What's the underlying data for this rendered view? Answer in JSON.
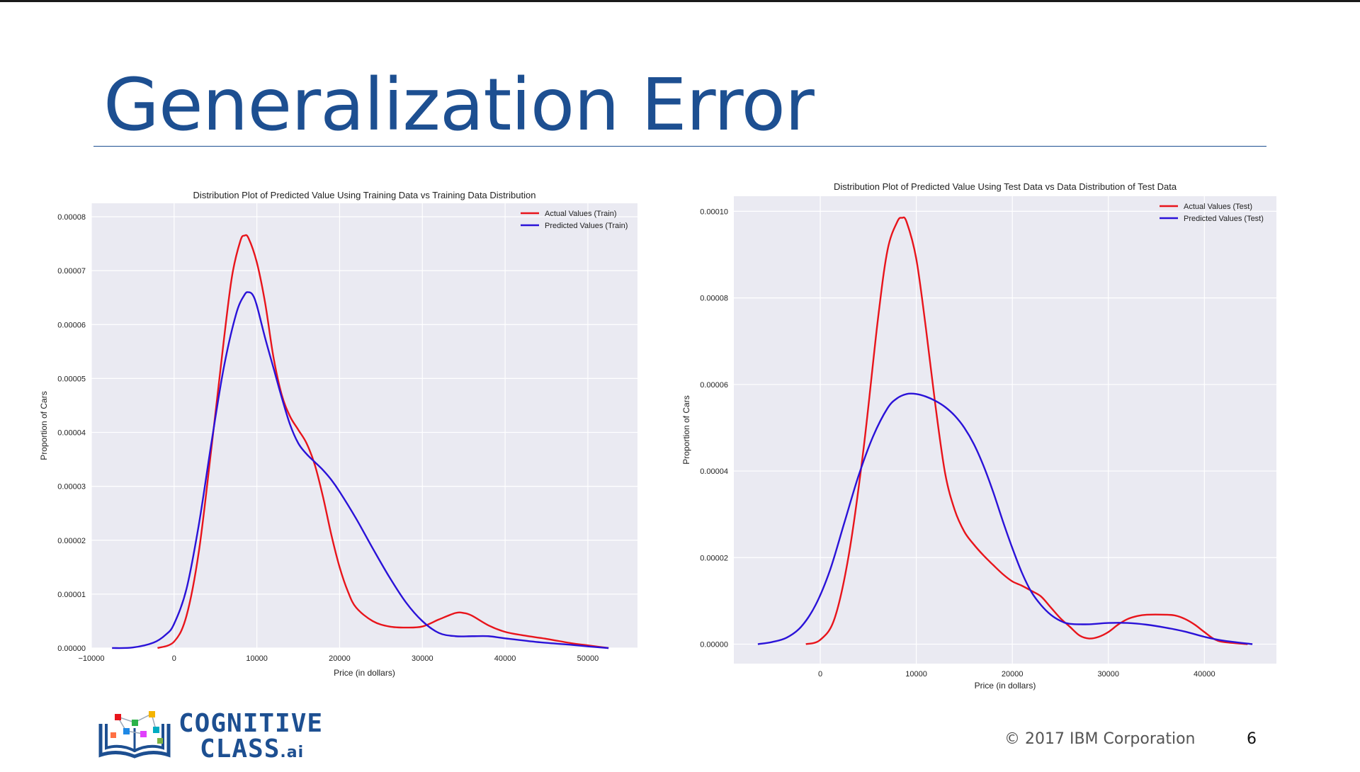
{
  "slide": {
    "title": "Generalization Error",
    "copyright": "© 2017 IBM Corporation",
    "page_number": "6",
    "logo": {
      "line1": "COGNITIVE",
      "line2": "CLASS",
      "suffix": ".ai"
    }
  },
  "colors": {
    "title": "#1d4f91",
    "actual": "#e8141b",
    "predicted": "#2a12d8",
    "plot_bg": "#eaeaf2",
    "grid": "#ffffff"
  },
  "chart_data": [
    {
      "type": "line",
      "title": "Distribution  Plot of  Predicted Value Using Training Data vs Training Data Distribution",
      "xlabel": "Price (in dollars)",
      "ylabel": "Proportion of Cars",
      "xlim": [
        -10000,
        56000
      ],
      "ylim": [
        0,
        8.25e-05
      ],
      "xticks": [
        -10000,
        0,
        10000,
        20000,
        30000,
        40000,
        50000
      ],
      "xtick_labels": [
        "−10000",
        "0",
        "10000",
        "20000",
        "30000",
        "40000",
        "50000"
      ],
      "yticks": [
        0,
        1e-05,
        2e-05,
        3e-05,
        4e-05,
        5e-05,
        6e-05,
        7e-05,
        8e-05
      ],
      "ytick_labels": [
        "0.00000",
        "0.00001",
        "0.00002",
        "0.00003",
        "0.00004",
        "0.00005",
        "0.00006",
        "0.00007",
        "0.00008"
      ],
      "grid": true,
      "legend": "top-right",
      "series": [
        {
          "name": "Actual Values (Train)",
          "color": "#e8141b",
          "x": [
            -2000,
            0,
            1500,
            3000,
            4500,
            6000,
            7000,
            8000,
            8500,
            9000,
            10000,
            11000,
            12000,
            13000,
            14000,
            15000,
            16000,
            17000,
            18000,
            19000,
            20000,
            21000,
            22000,
            24000,
            26000,
            28000,
            30000,
            32000,
            34000,
            35000,
            36000,
            38000,
            40000,
            42000,
            45000,
            48000,
            50000,
            52500
          ],
          "y": [
            0,
            1.2e-06,
            6e-06,
            1.8e-05,
            3.7e-05,
            5.7e-05,
            6.9e-05,
            7.55e-05,
            7.65e-05,
            7.6e-05,
            7.15e-05,
            6.4e-05,
            5.4e-05,
            4.7e-05,
            4.3e-05,
            4.05e-05,
            3.8e-05,
            3.4e-05,
            2.8e-05,
            2.1e-05,
            1.5e-05,
            1.05e-05,
            7.5e-06,
            5e-06,
            4e-06,
            3.8e-06,
            4e-06,
            5.3e-06,
            6.5e-06,
            6.5e-06,
            6e-06,
            4.2e-06,
            3e-06,
            2.4e-06,
            1.7e-06,
            9e-07,
            5e-07,
            0
          ]
        },
        {
          "name": "Predicted Values (Train)",
          "color": "#2a12d8",
          "x": [
            -7500,
            -5000,
            -2500,
            -1000,
            0,
            1500,
            3000,
            4500,
            6000,
            7500,
            8500,
            9000,
            9500,
            10000,
            11000,
            12000,
            13000,
            14000,
            15000,
            16000,
            17000,
            18000,
            19000,
            20000,
            22000,
            24000,
            26000,
            28000,
            30000,
            32000,
            34000,
            36000,
            38000,
            40000,
            44000,
            48000,
            50000,
            52500
          ],
          "y": [
            0,
            1e-07,
            1e-06,
            2.5e-06,
            4.5e-06,
            1.1e-05,
            2.3e-05,
            3.8e-05,
            5.2e-05,
            6.2e-05,
            6.55e-05,
            6.6e-05,
            6.55e-05,
            6.35e-05,
            5.75e-05,
            5.2e-05,
            4.65e-05,
            4.15e-05,
            3.8e-05,
            3.6e-05,
            3.45e-05,
            3.3e-05,
            3.12e-05,
            2.9e-05,
            2.4e-05,
            1.85e-05,
            1.32e-05,
            8.5e-06,
            5e-06,
            2.8e-06,
            2.2e-06,
            2.2e-06,
            2.2e-06,
            1.8e-06,
            1.1e-06,
            6e-07,
            3e-07,
            0
          ]
        }
      ]
    },
    {
      "type": "line",
      "title": "Distribution  Plot of  Predicted Value Using Test Data vs Data Distribution of Test Data",
      "xlabel": "Price (in dollars)",
      "ylabel": "Proportion of Cars",
      "xlim": [
        -9000,
        47500
      ],
      "ylim": [
        -4.5e-06,
        0.0001035
      ],
      "xticks": [
        0,
        10000,
        20000,
        30000,
        40000
      ],
      "xtick_labels": [
        "0",
        "10000",
        "20000",
        "30000",
        "40000"
      ],
      "yticks": [
        0,
        2e-05,
        4e-05,
        6e-05,
        8e-05,
        0.0001
      ],
      "ytick_labels": [
        "0.00000",
        "0.00002",
        "0.00004",
        "0.00006",
        "0.00008",
        "0.00010"
      ],
      "grid": true,
      "legend": "top-right",
      "series": [
        {
          "name": "Actual Values (Test)",
          "color": "#e8141b",
          "x": [
            -1500,
            0,
            1500,
            3000,
            4500,
            6000,
            7000,
            8000,
            8500,
            9000,
            10000,
            11000,
            12000,
            13000,
            14000,
            15000,
            16000,
            17000,
            18000,
            19000,
            20000,
            21000,
            22000,
            23000,
            24000,
            25000,
            26000,
            27000,
            28000,
            29000,
            30000,
            31000,
            32000,
            33000,
            34000,
            36000,
            37000,
            38000,
            39000,
            40000,
            41000,
            42000,
            44500
          ],
          "y": [
            0,
            1e-06,
            6e-06,
            2.1e-05,
            4.5e-05,
            7.5e-05,
            9.1e-05,
            9.75e-05,
            9.85e-05,
            9.75e-05,
            8.9e-05,
            7.3e-05,
            5.5e-05,
            3.95e-05,
            3.1e-05,
            2.6e-05,
            2.3e-05,
            2.05e-05,
            1.83e-05,
            1.62e-05,
            1.45e-05,
            1.35e-05,
            1.23e-05,
            1.1e-05,
            8.5e-06,
            6e-06,
            4e-06,
            2e-06,
            1.3e-06,
            1.7e-06,
            2.8e-06,
            4.5e-06,
            5.8e-06,
            6.5e-06,
            6.8e-06,
            6.8e-06,
            6.6e-06,
            5.8e-06,
            4.5e-06,
            2.8e-06,
            1.2e-06,
            5e-07,
            0
          ]
        },
        {
          "name": "Predicted Values (Test)",
          "color": "#2a12d8",
          "x": [
            -6500,
            -5000,
            -3500,
            -2000,
            -500,
            1000,
            2500,
            4000,
            5500,
            7000,
            8000,
            9000,
            10000,
            11000,
            12000,
            13000,
            14000,
            15000,
            16000,
            17000,
            18000,
            19000,
            20000,
            21000,
            22000,
            23000,
            24000,
            25000,
            26000,
            28000,
            30000,
            32000,
            34000,
            36000,
            38000,
            40000,
            42000,
            45000
          ],
          "y": [
            0,
            5e-07,
            1.5e-06,
            4e-06,
            9e-06,
            1.7e-05,
            2.8e-05,
            3.9e-05,
            4.8e-05,
            5.45e-05,
            5.68e-05,
            5.78e-05,
            5.78e-05,
            5.72e-05,
            5.62e-05,
            5.48e-05,
            5.28e-05,
            5e-05,
            4.62e-05,
            4.12e-05,
            3.52e-05,
            2.85e-05,
            2.22e-05,
            1.65e-05,
            1.2e-05,
            9e-06,
            6.8e-06,
            5.4e-06,
            4.7e-06,
            4.6e-06,
            4.9e-06,
            4.9e-06,
            4.5e-06,
            3.8e-06,
            2.9e-06,
            1.7e-06,
            8e-07,
            0
          ]
        }
      ]
    }
  ]
}
